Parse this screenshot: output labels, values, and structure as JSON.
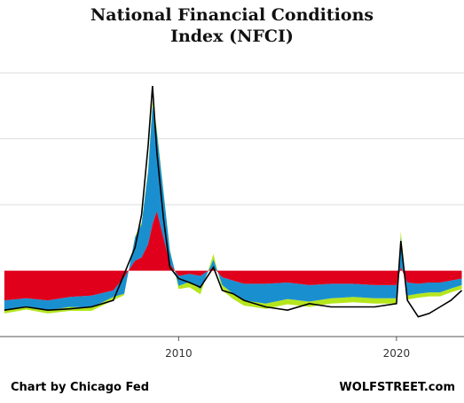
{
  "title_lines": [
    "National Financial Conditions",
    "Index (NFCI)"
  ],
  "credit": "Chart by Chicago Fed",
  "watermark": "WOLFSTREET.com",
  "colors": {
    "risk": "#e0001b",
    "credit": "#1a8fd0",
    "leverage": "#b5e61d",
    "nfci": "#000000",
    "grid": "#dddddd",
    "background": "#ffffff"
  },
  "chart_data": {
    "type": "area",
    "title": "National Financial Conditions Index (NFCI)",
    "xlabel": "",
    "ylabel": "",
    "xlim": [
      2001.8,
      2023.1
    ],
    "ylim": [
      -1.0,
      3.5
    ],
    "x_ticks": [
      2010,
      2020
    ],
    "x_tick_labels": [
      "2010",
      "2020"
    ],
    "y_gridlines": [
      1,
      2,
      3
    ],
    "grid": true,
    "legend": "none",
    "x": [
      2002.0,
      2003.0,
      2004.0,
      2005.0,
      2006.0,
      2007.0,
      2007.5,
      2008.0,
      2008.3,
      2008.6,
      2008.8,
      2009.0,
      2009.3,
      2009.6,
      2010.0,
      2010.5,
      2011.0,
      2011.6,
      2012.0,
      2012.5,
      2013.0,
      2014.0,
      2015.0,
      2016.0,
      2017.0,
      2018.0,
      2019.0,
      2020.0,
      2020.2,
      2020.5,
      2021.0,
      2021.5,
      2022.0,
      2022.5,
      2023.0
    ],
    "series": [
      {
        "key": "risk",
        "values": [
          0.45,
          0.42,
          0.45,
          0.4,
          0.38,
          0.3,
          0.1,
          0.15,
          0.2,
          0.4,
          0.7,
          0.9,
          0.5,
          0.1,
          0.08,
          0.05,
          0.08,
          0.05,
          0.1,
          0.15,
          0.2,
          0.2,
          0.18,
          0.22,
          0.2,
          0.2,
          0.22,
          0.22,
          0.05,
          0.18,
          0.2,
          0.18,
          0.18,
          0.15,
          0.12
        ]
      },
      {
        "key": "credit",
        "values": [
          0.15,
          0.12,
          0.15,
          0.15,
          0.18,
          0.1,
          0.25,
          0.35,
          0.5,
          1.1,
          1.8,
          1.2,
          0.7,
          0.2,
          0.15,
          0.12,
          0.2,
          0.12,
          0.12,
          0.2,
          0.25,
          0.3,
          0.25,
          0.25,
          0.22,
          0.2,
          0.2,
          0.2,
          0.45,
          0.2,
          0.15,
          0.15,
          0.15,
          0.12,
          0.1
        ]
      },
      {
        "key": "leverage",
        "values": [
          0.05,
          0.05,
          0.05,
          0.06,
          0.05,
          0.05,
          0.02,
          0.02,
          0.03,
          0.05,
          0.08,
          0.05,
          0.02,
          0.02,
          0.05,
          0.08,
          0.08,
          0.08,
          0.08,
          0.08,
          0.08,
          0.08,
          0.08,
          0.08,
          0.08,
          0.08,
          0.08,
          0.08,
          0.1,
          0.06,
          0.06,
          0.06,
          0.06,
          0.06,
          0.06
        ]
      },
      {
        "key": "nfci",
        "values": [
          -0.6,
          -0.55,
          -0.6,
          -0.58,
          -0.55,
          -0.45,
          -0.05,
          0.35,
          0.85,
          1.9,
          2.8,
          1.8,
          0.8,
          0.05,
          -0.12,
          -0.18,
          -0.25,
          0.05,
          -0.3,
          -0.35,
          -0.45,
          -0.55,
          -0.6,
          -0.5,
          -0.55,
          -0.55,
          -0.55,
          -0.5,
          0.45,
          -0.45,
          -0.7,
          -0.65,
          -0.55,
          -0.45,
          -0.3
        ]
      }
    ]
  }
}
